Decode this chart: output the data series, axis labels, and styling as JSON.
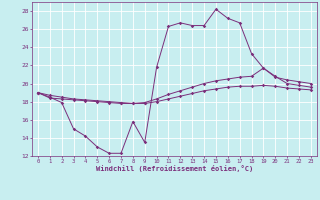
{
  "xlabel": "Windchill (Refroidissement éolien,°C)",
  "bg_color": "#c8eef0",
  "grid_color": "#ffffff",
  "line_color": "#7b2f7b",
  "xlim": [
    -0.5,
    23.5
  ],
  "ylim": [
    12,
    29
  ],
  "yticks": [
    12,
    14,
    16,
    18,
    20,
    22,
    24,
    26,
    28
  ],
  "xticks": [
    0,
    1,
    2,
    3,
    4,
    5,
    6,
    7,
    8,
    9,
    10,
    11,
    12,
    13,
    14,
    15,
    16,
    17,
    18,
    19,
    20,
    21,
    22,
    23
  ],
  "series1_x": [
    0,
    1,
    2,
    3,
    4,
    5,
    6,
    7,
    8,
    9,
    10,
    11,
    12,
    13,
    14,
    15,
    16,
    17,
    18,
    19,
    20,
    21,
    22,
    23
  ],
  "series1_y": [
    19.0,
    18.5,
    17.9,
    15.0,
    14.2,
    13.0,
    12.3,
    12.3,
    15.8,
    13.5,
    21.8,
    26.3,
    26.7,
    26.4,
    26.4,
    28.2,
    27.2,
    26.7,
    23.3,
    21.7,
    20.8,
    20.0,
    19.8,
    19.6
  ],
  "series2_x": [
    0,
    1,
    2,
    3,
    4,
    5,
    6,
    7,
    8,
    9,
    10,
    11,
    12,
    13,
    14,
    15,
    16,
    17,
    18,
    19,
    20,
    21,
    22,
    23
  ],
  "series2_y": [
    19.0,
    18.4,
    18.3,
    18.2,
    18.1,
    18.0,
    17.9,
    17.8,
    17.8,
    17.9,
    18.3,
    18.8,
    19.2,
    19.6,
    20.0,
    20.3,
    20.5,
    20.7,
    20.8,
    21.7,
    20.7,
    20.4,
    20.2,
    20.0
  ],
  "series3_x": [
    0,
    1,
    2,
    3,
    4,
    5,
    6,
    7,
    8,
    9,
    10,
    11,
    12,
    13,
    14,
    15,
    16,
    17,
    18,
    19,
    20,
    21,
    22,
    23
  ],
  "series3_y": [
    19.0,
    18.7,
    18.5,
    18.3,
    18.2,
    18.1,
    18.0,
    17.9,
    17.8,
    17.8,
    18.0,
    18.3,
    18.6,
    18.9,
    19.2,
    19.4,
    19.6,
    19.7,
    19.7,
    19.8,
    19.7,
    19.5,
    19.4,
    19.3
  ]
}
